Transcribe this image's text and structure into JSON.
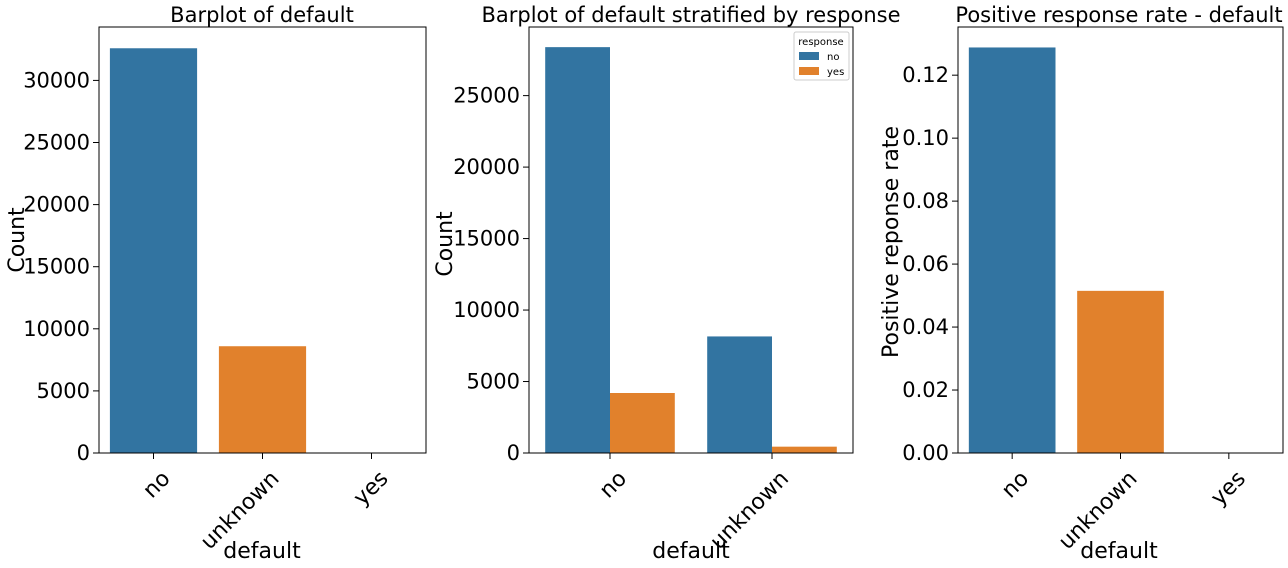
{
  "chart_data": [
    {
      "type": "bar",
      "title": "Barplot of default",
      "xlabel": "default",
      "ylabel": "Count",
      "categories": [
        "no",
        "unknown",
        "yes"
      ],
      "values": [
        32588,
        8597,
        3
      ],
      "bar_colors": [
        "#3274a1",
        "#e1812c",
        "#3a923a"
      ],
      "ylim": [
        0,
        34300
      ],
      "yticks": [
        0,
        5000,
        10000,
        15000,
        20000,
        25000,
        30000
      ],
      "ytick_labels": [
        "0",
        "5000",
        "10000",
        "15000",
        "20000",
        "25000",
        "30000"
      ],
      "grid": false
    },
    {
      "type": "bar",
      "title": "Barplot of default stratified by response",
      "xlabel": "default",
      "ylabel": "Count",
      "categories": [
        "no",
        "unknown"
      ],
      "series": [
        {
          "name": "no",
          "color": "#3274a1",
          "values": [
            28391,
            8154
          ]
        },
        {
          "name": "yes",
          "color": "#e1812c",
          "values": [
            4197,
            443
          ]
        }
      ],
      "legend": {
        "title": "response",
        "placement": "top-right"
      },
      "ylim": [
        0,
        29800
      ],
      "yticks": [
        0,
        5000,
        10000,
        15000,
        20000,
        25000
      ],
      "ytick_labels": [
        "0",
        "5000",
        "10000",
        "15000",
        "20000",
        "25000"
      ],
      "grid": false
    },
    {
      "type": "bar",
      "title": "Positive response rate - default",
      "xlabel": "default",
      "ylabel": "Positive reponse rate",
      "categories": [
        "no",
        "unknown",
        "yes"
      ],
      "values": [
        0.1288,
        0.0515,
        0.0
      ],
      "bar_colors": [
        "#3274a1",
        "#e1812c",
        "#3a923a"
      ],
      "ylim": [
        0,
        0.1353
      ],
      "yticks": [
        0.0,
        0.02,
        0.04,
        0.06,
        0.08,
        0.1,
        0.12
      ],
      "ytick_labels": [
        "0.00",
        "0.02",
        "0.04",
        "0.06",
        "0.08",
        "0.10",
        "0.12"
      ],
      "grid": false
    }
  ]
}
